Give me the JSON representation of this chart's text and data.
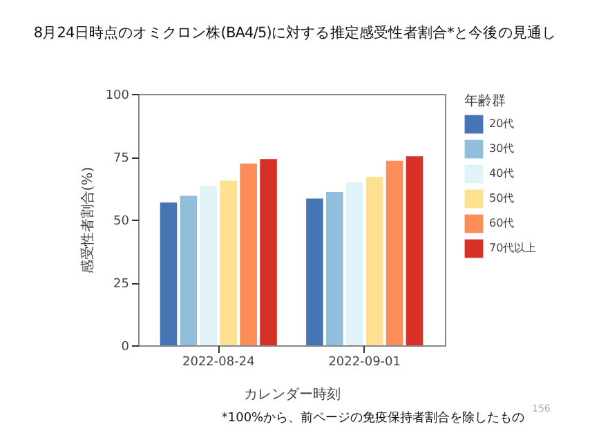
{
  "chart_data": {
    "type": "bar",
    "title": "8月24日時点のオミクロン株(BA4/5)に対する推定感受性者割合*と今後の見通し",
    "xlabel": "カレンダー時刻",
    "ylabel": "感受性者割合(%)",
    "legend_title": "年齢群",
    "legend": "right",
    "categories": [
      "2022-08-24",
      "2022-09-01"
    ],
    "series": [
      {
        "name": "20代",
        "color": "#4575b4",
        "values": [
          56.8,
          58.4
        ]
      },
      {
        "name": "30代",
        "color": "#91bfdb",
        "values": [
          59.5,
          61
        ]
      },
      {
        "name": "40代",
        "color": "#e0f3f8",
        "values": [
          63.3,
          64.8
        ]
      },
      {
        "name": "50代",
        "color": "#fee090",
        "values": [
          65.5,
          67
        ]
      },
      {
        "name": "60代",
        "color": "#fc8d59",
        "values": [
          72.3,
          73.4
        ]
      },
      {
        "name": "70代以上",
        "color": "#d73027",
        "values": [
          74.1,
          75.2
        ]
      }
    ],
    "ylim": [
      0,
      100
    ],
    "yticks": [
      0,
      25,
      50,
      75,
      100
    ],
    "annotations": [
      "*100%から、前ページの免疫保持者割合を除したもの",
      "156"
    ]
  }
}
